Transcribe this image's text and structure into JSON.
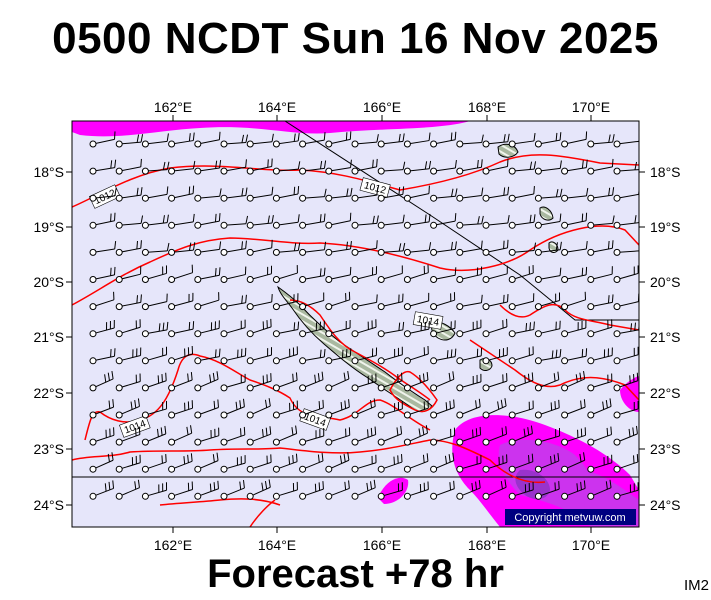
{
  "title": "0500 NCDT Sun 16 Nov 2025",
  "footer": "Forecast +78 hr",
  "corner_label": "IM2",
  "copyright": "Copyright metvuw.com",
  "axes": {
    "lon_ticks": [
      "162°E",
      "164°E",
      "166°E",
      "168°E",
      "170°E"
    ],
    "lat_ticks": [
      "18°S",
      "19°S",
      "20°S",
      "21°S",
      "22°S",
      "23°S",
      "24°S"
    ]
  },
  "isobars": {
    "labels": [
      "1012",
      "1012",
      "1014",
      "1014",
      "1014"
    ]
  },
  "colors": {
    "background_pressure": "#e6e6fa",
    "rain_light": "#ff00ff",
    "rain_medium": "#cc33ee",
    "rain_heavy": "#9933cc",
    "isobar": "#ff0000",
    "land": "#9aab90",
    "coastline": "#000000"
  },
  "map_type": "wind barbs, isobars (hPa) and precipitation over New Caledonia"
}
